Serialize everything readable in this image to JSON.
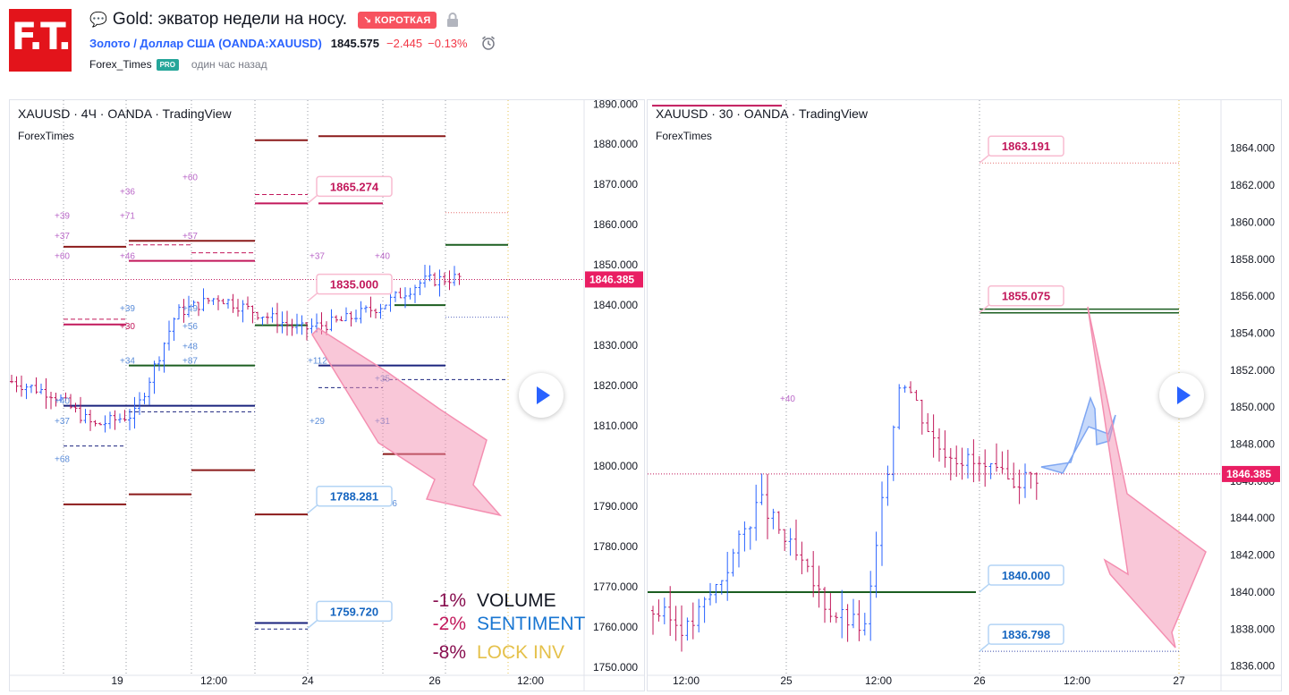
{
  "header": {
    "title": "Gold: экватор недели на носу.",
    "badge": "↘ КОРОТКАЯ",
    "symbol": "Золото / Доллар США (OANDA:XAUUSD)",
    "price": "1845.575",
    "change": "−2.445",
    "change_pct": "−0.13%",
    "author": "Forex_Times",
    "pro": "PRO",
    "time_ago": "один час назад",
    "logo": "F.T."
  },
  "chart_data": [
    {
      "type": "candlestick",
      "legend_title": "XAUUSD · 4Ч · OANDA · TradingView",
      "legend_sub": "ForexTimes",
      "y_ticks": [
        "1890.000",
        "1880.000",
        "1870.000",
        "1860.000",
        "1850.000",
        "1840.000",
        "1830.000",
        "1820.000",
        "1810.000",
        "1800.000",
        "1790.000",
        "1780.000",
        "1770.000",
        "1760.000",
        "1750.000"
      ],
      "ylim": [
        1748,
        1890.5
      ],
      "x_ticks": [
        "19",
        "12:00",
        "24",
        "26",
        "12:00"
      ],
      "last_price": "1846.385",
      "callouts": [
        "1865.274",
        "1835.000",
        "1788.281",
        "1759.720"
      ],
      "level_labels": [
        "+60",
        "+36",
        "+39",
        "+71",
        "+37",
        "+57",
        "+60",
        "+46",
        "+37",
        "+40",
        "+39",
        "+30",
        "+49",
        "+56",
        "+48",
        "+34",
        "+87",
        "+112",
        "+35",
        "+40",
        "+37",
        "+29",
        "+31",
        "+68",
        "+36"
      ],
      "indicators": [
        {
          "value": "-1%",
          "name": "VOLUME"
        },
        {
          "value": "-2%",
          "name": "SENTIMENT"
        },
        {
          "value": "-8%",
          "name": "LOCK INV"
        }
      ],
      "colors": {
        "up": "#2962ff",
        "down": "#c2185b"
      }
    },
    {
      "type": "candlestick",
      "legend_title": "XAUUSD · 30 · OANDA · TradingView",
      "legend_sub": "ForexTimes",
      "y_ticks": [
        "1864.000",
        "1862.000",
        "1860.000",
        "1858.000",
        "1856.000",
        "1854.000",
        "1852.000",
        "1850.000",
        "1848.000",
        "1846.000",
        "1844.000",
        "1842.000",
        "1840.000",
        "1838.000",
        "1836.000"
      ],
      "ylim": [
        1835.5,
        1866.5
      ],
      "x_ticks": [
        "12:00",
        "25",
        "12:00",
        "26",
        "12:00",
        "27"
      ],
      "last_price": "1846.385",
      "callouts": [
        "1863.191",
        "1855.075",
        "1840.000",
        "1836.798"
      ],
      "level_labels": [
        "+40"
      ],
      "colors": {
        "up": "#2962ff",
        "down": "#c2185b"
      }
    }
  ]
}
